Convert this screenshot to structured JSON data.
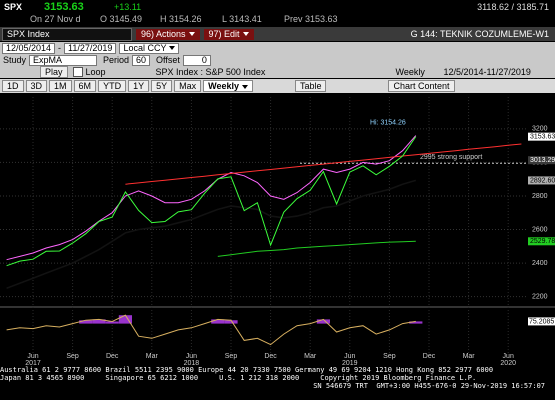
{
  "header": {
    "ticker": "SPX",
    "last": "3153.63",
    "change": "+13.11",
    "range": "3118.62 / 3185.71",
    "date": "On 27 Nov d",
    "open": "O 3145.49",
    "high": "H 3154.26",
    "low": "L 3143.41",
    "prev": "Prev 3153.63"
  },
  "toolbar": {
    "security": "SPX Index",
    "actions": "96) Actions",
    "edit": "97) Edit",
    "title": "G 144: TEKNIK COZUMLEME-W1"
  },
  "range_row": {
    "start": "12/05/2014",
    "end": "11/27/2019",
    "currency": "Local CCY"
  },
  "study_row": {
    "study_label": "Study",
    "study": "ExpMA",
    "period_label": "Period",
    "period": "60",
    "offset_label": "Offset",
    "offset": "0"
  },
  "play_row": {
    "play": "Play",
    "loop": "Loop",
    "security": "SPX Index : S&P 500 Index",
    "frequency": "Weekly",
    "span": "12/5/2014-11/27/2019"
  },
  "buttons": [
    "1D",
    "3D",
    "1M",
    "6M",
    "YTD",
    "1Y",
    "5Y",
    "Max",
    "Weekly"
  ],
  "table": "Table",
  "chart_content": "Chart Content",
  "chart_data": {
    "type": "line",
    "categories": [
      null,
      null,
      "Jun",
      null,
      null,
      "Sep",
      null,
      null,
      "Dec",
      null,
      null,
      "Mar",
      null,
      null,
      "Jun",
      null,
      null,
      "Sep",
      null,
      null,
      "Dec",
      null,
      null,
      "Mar",
      null,
      null,
      "Jun",
      null,
      null,
      "Sep",
      null,
      null,
      "Dec",
      null,
      null,
      "Mar",
      null,
      null,
      "Jun",
      null
    ],
    "year_labels": [
      null,
      null,
      "2017",
      null,
      null,
      null,
      null,
      null,
      null,
      null,
      null,
      null,
      null,
      null,
      "2018",
      null,
      null,
      null,
      null,
      null,
      null,
      null,
      null,
      null,
      null,
      null,
      "2019",
      null,
      null,
      null,
      null,
      null,
      null,
      null,
      null,
      null,
      null,
      null,
      "2020",
      null
    ],
    "series": [
      {
        "color": "#ff66ff",
        "values": [
          2420,
          2440,
          2460,
          2490,
          2510,
          2540,
          2590,
          2650,
          2700,
          2800,
          2830,
          2800,
          2760,
          2760,
          2780,
          2830,
          2900,
          2940,
          2920,
          2880,
          2800,
          2780,
          2820,
          2880,
          2960,
          2940,
          2960,
          3000,
          2990,
          3010,
          3070,
          3160,
          null,
          null,
          null,
          null,
          null,
          null,
          null,
          null
        ]
      },
      {
        "color": "#ff3030",
        "values": [
          null,
          null,
          null,
          null,
          null,
          null,
          null,
          null,
          null,
          2870,
          2878,
          2886,
          2894,
          2902,
          2910,
          2918,
          2926,
          2934,
          2942,
          2950,
          2958,
          2966,
          2974,
          2982,
          2990,
          2998,
          3006,
          3014,
          3022,
          3030,
          3038,
          3046,
          3054,
          3062,
          3070,
          3078,
          3086,
          3094,
          3102,
          3110
        ]
      },
      {
        "color": "#000000",
        "tag": "#b0b0b0",
        "values": [
          2250,
          2280,
          2310,
          2340,
          2370,
          2400,
          2440,
          2480,
          2530,
          2580,
          2600,
          2610,
          2620,
          2640,
          2660,
          2690,
          2720,
          2740,
          2730,
          2720,
          2680,
          2670,
          2680,
          2700,
          2730,
          2740,
          2770,
          2800,
          2820,
          2840,
          2870,
          2892.6,
          null,
          null,
          null,
          null,
          null,
          null,
          null,
          null
        ],
        "value_labels": [
          null,
          null,
          null,
          null,
          null,
          null,
          null,
          null,
          null,
          null,
          null,
          null,
          null,
          null,
          null,
          null,
          null,
          null,
          null,
          null,
          null,
          null,
          null,
          null,
          null,
          null,
          null,
          null,
          null,
          null,
          null,
          "2892.60",
          null,
          null,
          null,
          null,
          null,
          null,
          null,
          null
        ]
      },
      {
        "color": "#22cc22",
        "tag": "#22cc22",
        "values": [
          null,
          null,
          null,
          null,
          null,
          null,
          null,
          null,
          null,
          null,
          null,
          null,
          null,
          null,
          null,
          null,
          2440,
          2450,
          2460,
          2470,
          2475,
          2480,
          2490,
          2495,
          2500,
          2505,
          2510,
          2515,
          2520,
          2525,
          2527,
          2529.78,
          null,
          null,
          null,
          null,
          null,
          null,
          null,
          null
        ]
      },
      {
        "color": "#3cff3c",
        "tag": "#ffffff",
        "values": [
          2384,
          2412,
          2423,
          2470,
          2472,
          2519,
          2575,
          2648,
          2674,
          2824,
          2714,
          2641,
          2648,
          2705,
          2718,
          2816,
          2902,
          2914,
          2712,
          2760,
          2507,
          2704,
          2784,
          2834,
          2946,
          2752,
          2942,
          2980,
          2926,
          2977,
          3038,
          3153.63,
          null,
          null,
          null,
          null,
          null,
          null,
          null,
          null
        ]
      }
    ],
    "ylim": [
      2150,
      3390
    ],
    "yticks": [
      2200,
      2400,
      2600,
      2800,
      3000,
      3200
    ],
    "grid": true,
    "level": {
      "value": 3013.29,
      "color": "#3a3a3a"
    },
    "support": {
      "value": 2995,
      "label": "2995 strong support",
      "color": "#cccccc"
    },
    "annotation": "Hi: 3154.26",
    "oscillator": {
      "color": "#d8b060",
      "fill": "#9933cc",
      "ylim": [
        0,
        100
      ],
      "values": [
        55,
        60,
        58,
        65,
        62,
        70,
        78,
        80,
        75,
        90,
        40,
        35,
        45,
        55,
        60,
        70,
        80,
        78,
        30,
        35,
        20,
        45,
        65,
        70,
        80,
        50,
        60,
        65,
        45,
        55,
        70,
        75.2085,
        null,
        null,
        null,
        null,
        null,
        null,
        null,
        null
      ]
    }
  },
  "footer": [
    "Australia 61 2 9777 8600 Brazil 5511 2395 9000 Europe 44 20 7330 7500 Germany 49 69 9204 1210 Hong Kong 852 2977 6000",
    "Japan 81 3 4565 8900     Singapore 65 6212 1000     U.S. 1 212 318 2000     Copyright 2019 Bloomberg Finance L.P.",
    "SN 546679 TRT  GMT+3:00 H455-676-0 29-Nov-2019 16:57:07"
  ]
}
